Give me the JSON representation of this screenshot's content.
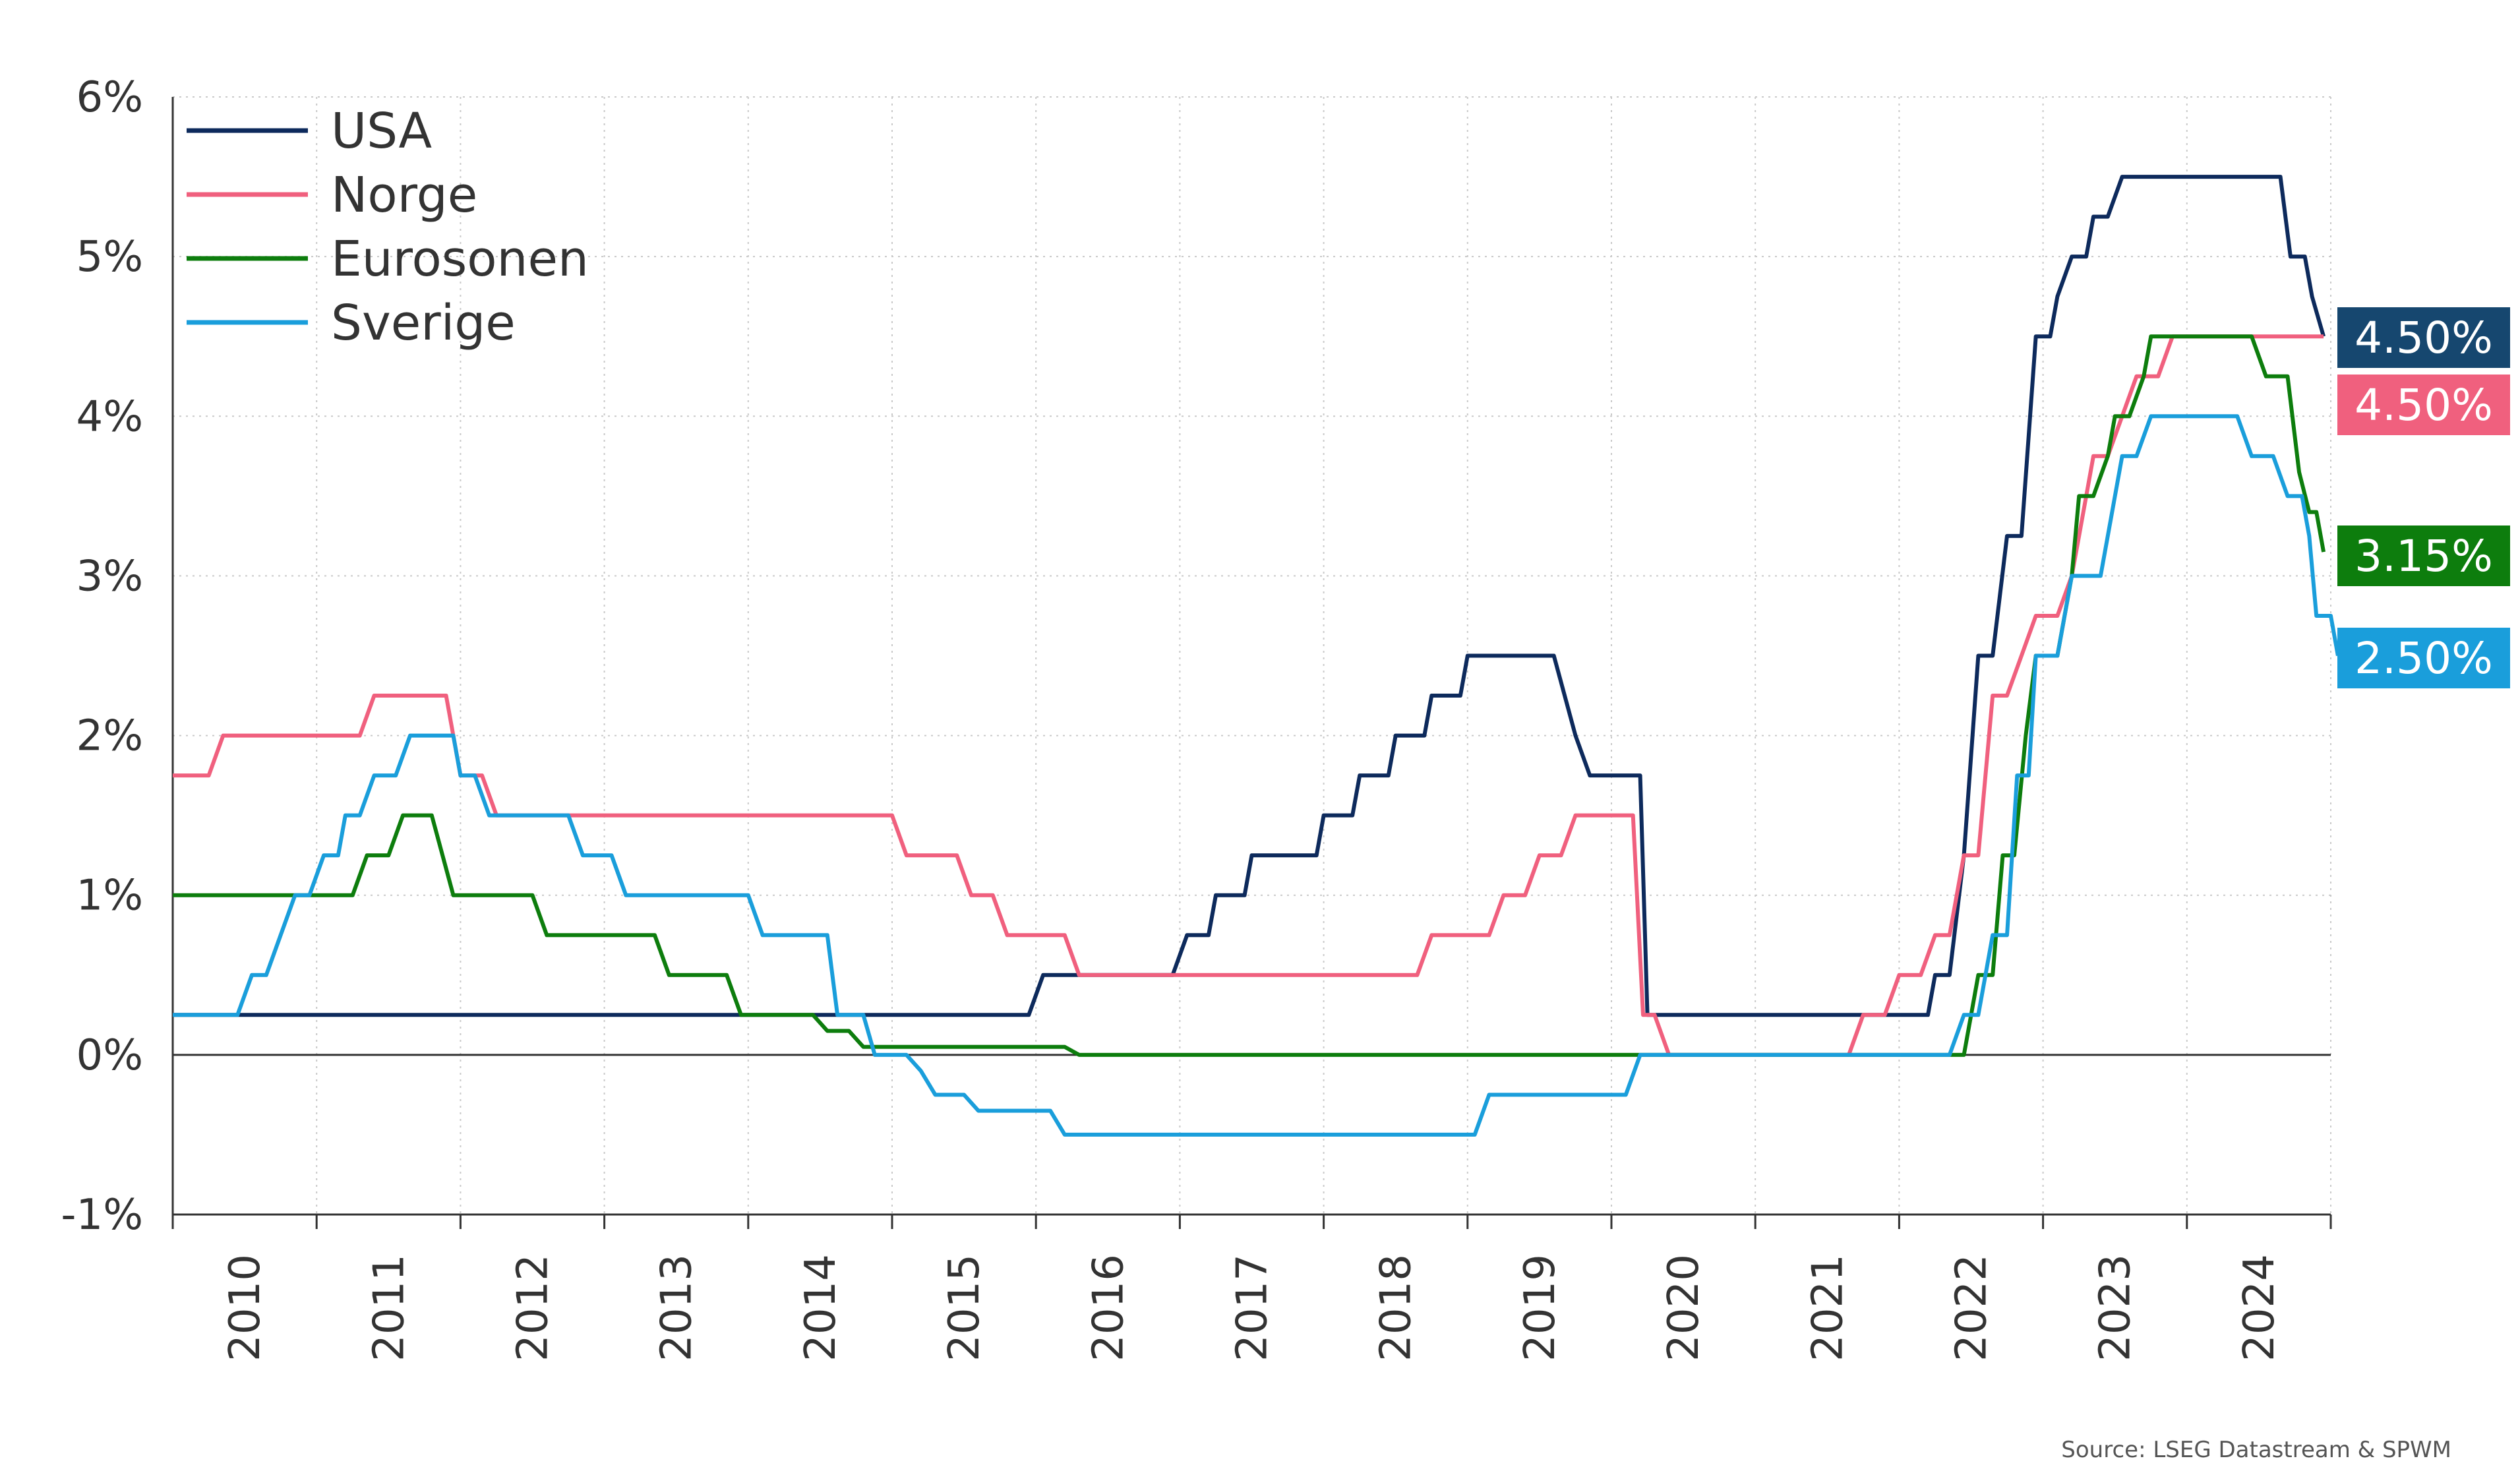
{
  "chart_data": {
    "type": "line",
    "title": "",
    "xlabel": "",
    "ylabel": "",
    "ylim": [
      -1,
      6
    ],
    "xlim": [
      2010.0,
      2025.0
    ],
    "y_ticks": [
      {
        "value": -1,
        "label": "-1%"
      },
      {
        "value": 0,
        "label": "0%"
      },
      {
        "value": 1,
        "label": "1%"
      },
      {
        "value": 2,
        "label": "2%"
      },
      {
        "value": 3,
        "label": "3%"
      },
      {
        "value": 4,
        "label": "4%"
      },
      {
        "value": 5,
        "label": "5%"
      },
      {
        "value": 6,
        "label": "6%"
      }
    ],
    "x_ticks": [
      "2010",
      "2011",
      "2012",
      "2013",
      "2014",
      "2015",
      "2016",
      "2017",
      "2018",
      "2019",
      "2020",
      "2021",
      "2022",
      "2023",
      "2024"
    ],
    "grid": "dotted",
    "legend_position": "top-left",
    "source": "Source: LSEG Datastream & SPWM",
    "series": [
      {
        "name": "USA",
        "color": "#0d2a5c",
        "end_label": "4.50%",
        "badge_color": "#16476f",
        "points": [
          [
            2010.0,
            0.25
          ],
          [
            2015.95,
            0.25
          ],
          [
            2016.05,
            0.5
          ],
          [
            2016.95,
            0.5
          ],
          [
            2017.05,
            0.75
          ],
          [
            2017.2,
            0.75
          ],
          [
            2017.25,
            1.0
          ],
          [
            2017.45,
            1.0
          ],
          [
            2017.5,
            1.25
          ],
          [
            2017.95,
            1.25
          ],
          [
            2018.0,
            1.5
          ],
          [
            2018.2,
            1.5
          ],
          [
            2018.25,
            1.75
          ],
          [
            2018.45,
            1.75
          ],
          [
            2018.5,
            2.0
          ],
          [
            2018.7,
            2.0
          ],
          [
            2018.75,
            2.25
          ],
          [
            2018.95,
            2.25
          ],
          [
            2019.0,
            2.5
          ],
          [
            2019.6,
            2.5
          ],
          [
            2019.75,
            2.0
          ],
          [
            2019.85,
            1.75
          ],
          [
            2020.2,
            1.75
          ],
          [
            2020.25,
            0.25
          ],
          [
            2022.2,
            0.25
          ],
          [
            2022.25,
            0.5
          ],
          [
            2022.35,
            0.5
          ],
          [
            2022.45,
            1.25
          ],
          [
            2022.55,
            2.5
          ],
          [
            2022.65,
            2.5
          ],
          [
            2022.75,
            3.25
          ],
          [
            2022.85,
            3.25
          ],
          [
            2022.95,
            4.5
          ],
          [
            2023.05,
            4.5
          ],
          [
            2023.1,
            4.75
          ],
          [
            2023.2,
            5.0
          ],
          [
            2023.3,
            5.0
          ],
          [
            2023.35,
            5.25
          ],
          [
            2023.45,
            5.25
          ],
          [
            2023.55,
            5.5
          ],
          [
            2024.65,
            5.5
          ],
          [
            2024.72,
            5.0
          ],
          [
            2024.82,
            5.0
          ],
          [
            2024.87,
            4.75
          ],
          [
            2024.95,
            4.5
          ]
        ]
      },
      {
        "name": "Norge",
        "color": "#f0607e",
        "end_label": "4.50%",
        "badge_color": "#f0607e",
        "points": [
          [
            2010.0,
            1.75
          ],
          [
            2010.25,
            1.75
          ],
          [
            2010.35,
            2.0
          ],
          [
            2011.3,
            2.0
          ],
          [
            2011.4,
            2.25
          ],
          [
            2011.9,
            2.25
          ],
          [
            2012.0,
            1.75
          ],
          [
            2012.15,
            1.75
          ],
          [
            2012.25,
            1.5
          ],
          [
            2015.0,
            1.5
          ],
          [
            2015.1,
            1.25
          ],
          [
            2015.45,
            1.25
          ],
          [
            2015.55,
            1.0
          ],
          [
            2015.7,
            1.0
          ],
          [
            2015.8,
            0.75
          ],
          [
            2016.2,
            0.75
          ],
          [
            2016.3,
            0.5
          ],
          [
            2018.65,
            0.5
          ],
          [
            2018.75,
            0.75
          ],
          [
            2019.15,
            0.75
          ],
          [
            2019.25,
            1.0
          ],
          [
            2019.4,
            1.0
          ],
          [
            2019.5,
            1.25
          ],
          [
            2019.65,
            1.25
          ],
          [
            2019.75,
            1.5
          ],
          [
            2020.15,
            1.5
          ],
          [
            2020.22,
            0.25
          ],
          [
            2020.3,
            0.25
          ],
          [
            2020.4,
            0.0
          ],
          [
            2021.65,
            0.0
          ],
          [
            2021.75,
            0.25
          ],
          [
            2021.9,
            0.25
          ],
          [
            2022.0,
            0.5
          ],
          [
            2022.15,
            0.5
          ],
          [
            2022.25,
            0.75
          ],
          [
            2022.35,
            0.75
          ],
          [
            2022.45,
            1.25
          ],
          [
            2022.55,
            1.25
          ],
          [
            2022.65,
            2.25
          ],
          [
            2022.75,
            2.25
          ],
          [
            2022.85,
            2.5
          ],
          [
            2022.95,
            2.75
          ],
          [
            2023.1,
            2.75
          ],
          [
            2023.2,
            3.0
          ],
          [
            2023.25,
            3.25
          ],
          [
            2023.35,
            3.75
          ],
          [
            2023.45,
            3.75
          ],
          [
            2023.55,
            4.0
          ],
          [
            2023.65,
            4.25
          ],
          [
            2023.8,
            4.25
          ],
          [
            2023.9,
            4.5
          ],
          [
            2024.95,
            4.5
          ]
        ]
      },
      {
        "name": "Eurosonen",
        "color": "#0d7d0d",
        "end_label": "3.15%",
        "badge_color": "#0d7d0d",
        "points": [
          [
            2010.0,
            1.0
          ],
          [
            2011.25,
            1.0
          ],
          [
            2011.35,
            1.25
          ],
          [
            2011.5,
            1.25
          ],
          [
            2011.6,
            1.5
          ],
          [
            2011.8,
            1.5
          ],
          [
            2011.95,
            1.0
          ],
          [
            2012.5,
            1.0
          ],
          [
            2012.6,
            0.75
          ],
          [
            2013.35,
            0.75
          ],
          [
            2013.45,
            0.5
          ],
          [
            2013.85,
            0.5
          ],
          [
            2013.95,
            0.25
          ],
          [
            2014.45,
            0.25
          ],
          [
            2014.55,
            0.15
          ],
          [
            2014.7,
            0.15
          ],
          [
            2014.8,
            0.05
          ],
          [
            2016.2,
            0.05
          ],
          [
            2016.3,
            0.0
          ],
          [
            2022.45,
            0.0
          ],
          [
            2022.55,
            0.5
          ],
          [
            2022.65,
            0.5
          ],
          [
            2022.72,
            1.25
          ],
          [
            2022.8,
            1.25
          ],
          [
            2022.88,
            2.0
          ],
          [
            2022.95,
            2.5
          ],
          [
            2023.1,
            2.5
          ],
          [
            2023.2,
            3.0
          ],
          [
            2023.25,
            3.5
          ],
          [
            2023.35,
            3.5
          ],
          [
            2023.45,
            3.75
          ],
          [
            2023.5,
            4.0
          ],
          [
            2023.6,
            4.0
          ],
          [
            2023.7,
            4.25
          ],
          [
            2023.75,
            4.5
          ],
          [
            2024.45,
            4.5
          ],
          [
            2024.55,
            4.25
          ],
          [
            2024.7,
            4.25
          ],
          [
            2024.78,
            3.65
          ],
          [
            2024.85,
            3.4
          ],
          [
            2024.9,
            3.4
          ],
          [
            2024.95,
            3.15
          ]
        ]
      },
      {
        "name": "Sverige",
        "color": "#1a9edb",
        "end_label": "2.50%",
        "badge_color": "#1a9edb",
        "points": [
          [
            2010.0,
            0.25
          ],
          [
            2010.45,
            0.25
          ],
          [
            2010.55,
            0.5
          ],
          [
            2010.65,
            0.5
          ],
          [
            2010.75,
            0.75
          ],
          [
            2010.85,
            1.0
          ],
          [
            2010.95,
            1.0
          ],
          [
            2011.05,
            1.25
          ],
          [
            2011.15,
            1.25
          ],
          [
            2011.2,
            1.5
          ],
          [
            2011.3,
            1.5
          ],
          [
            2011.4,
            1.75
          ],
          [
            2011.55,
            1.75
          ],
          [
            2011.65,
            2.0
          ],
          [
            2011.95,
            2.0
          ],
          [
            2012.0,
            1.75
          ],
          [
            2012.1,
            1.75
          ],
          [
            2012.2,
            1.5
          ],
          [
            2012.75,
            1.5
          ],
          [
            2012.85,
            1.25
          ],
          [
            2013.05,
            1.25
          ],
          [
            2013.15,
            1.0
          ],
          [
            2014.0,
            1.0
          ],
          [
            2014.1,
            0.75
          ],
          [
            2014.55,
            0.75
          ],
          [
            2014.62,
            0.25
          ],
          [
            2014.8,
            0.25
          ],
          [
            2014.88,
            0.0
          ],
          [
            2015.1,
            0.0
          ],
          [
            2015.2,
            -0.1
          ],
          [
            2015.3,
            -0.25
          ],
          [
            2015.5,
            -0.25
          ],
          [
            2015.6,
            -0.35
          ],
          [
            2016.1,
            -0.35
          ],
          [
            2016.2,
            -0.5
          ],
          [
            2019.05,
            -0.5
          ],
          [
            2019.15,
            -0.25
          ],
          [
            2020.1,
            -0.25
          ],
          [
            2020.2,
            0.0
          ],
          [
            2022.35,
            0.0
          ],
          [
            2022.45,
            0.25
          ],
          [
            2022.55,
            0.25
          ],
          [
            2022.65,
            0.75
          ],
          [
            2022.75,
            0.75
          ],
          [
            2022.82,
            1.75
          ],
          [
            2022.9,
            1.75
          ],
          [
            2022.95,
            2.5
          ],
          [
            2023.1,
            2.5
          ],
          [
            2023.2,
            3.0
          ],
          [
            2023.4,
            3.0
          ],
          [
            2023.5,
            3.5
          ],
          [
            2023.55,
            3.75
          ],
          [
            2023.65,
            3.75
          ],
          [
            2023.75,
            4.0
          ],
          [
            2024.35,
            4.0
          ],
          [
            2024.45,
            3.75
          ],
          [
            2024.6,
            3.75
          ],
          [
            2024.7,
            3.5
          ],
          [
            2024.8,
            3.5
          ],
          [
            2024.85,
            3.25
          ],
          [
            2024.9,
            2.75
          ],
          [
            2025.0,
            2.75
          ],
          [
            2025.05,
            2.5
          ]
        ]
      }
    ]
  }
}
